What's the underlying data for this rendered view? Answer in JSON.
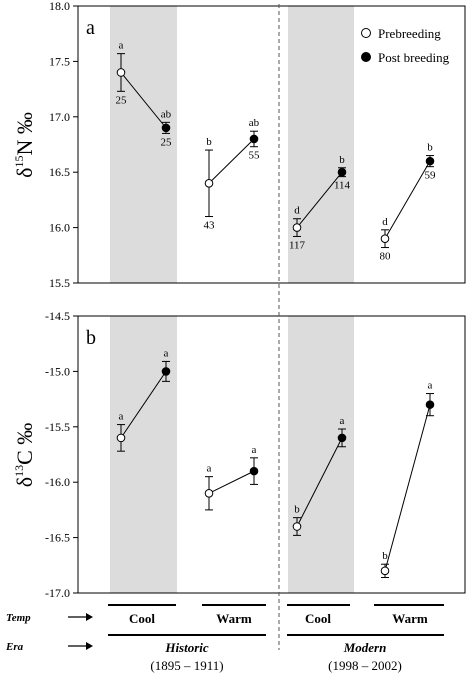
{
  "chart_data": [
    {
      "panel": "a",
      "type": "line",
      "ylabel_main": "δ",
      "ylabel_sup": "15",
      "ylabel_rest": "N ‰",
      "ylim": [
        15.5,
        18.0
      ],
      "yticks": [
        "15.5",
        "16.0",
        "16.5",
        "17.0",
        "17.5",
        "18.0"
      ],
      "legend": {
        "placement": "top-right",
        "entries": [
          "Prebreeding",
          "Post breeding"
        ]
      },
      "groups": [
        {
          "name": "Historic Cool",
          "pre": {
            "value": 17.4,
            "err": 0.17,
            "letter": "a",
            "n": "25"
          },
          "post": {
            "value": 16.9,
            "err": 0.05,
            "letter": "ab",
            "n": "25"
          }
        },
        {
          "name": "Historic Warm",
          "pre": {
            "value": 16.4,
            "err": 0.3,
            "letter": "b",
            "n": "43"
          },
          "post": {
            "value": 16.8,
            "err": 0.07,
            "letter": "ab",
            "n": "55"
          }
        },
        {
          "name": "Modern Cool",
          "pre": {
            "value": 16.0,
            "err": 0.08,
            "letter": "d",
            "n": "117"
          },
          "post": {
            "value": 16.5,
            "err": 0.04,
            "letter": "b",
            "n": "114"
          }
        },
        {
          "name": "Modern Warm",
          "pre": {
            "value": 15.9,
            "err": 0.08,
            "letter": "d",
            "n": "80"
          },
          "post": {
            "value": 16.6,
            "err": 0.05,
            "letter": "b",
            "n": "59"
          }
        }
      ]
    },
    {
      "panel": "b",
      "type": "line",
      "ylabel_main": "δ",
      "ylabel_sup": "13",
      "ylabel_rest": "C ‰",
      "ylim": [
        -17.0,
        -14.5
      ],
      "yticks": [
        "-17.0",
        "-16.5",
        "-16.0",
        "-15.5",
        "-15.0",
        "-14.5"
      ],
      "groups": [
        {
          "name": "Historic Cool",
          "pre": {
            "value": -15.6,
            "err": 0.12,
            "letter": "a"
          },
          "post": {
            "value": -15.0,
            "err": 0.09,
            "letter": "a"
          }
        },
        {
          "name": "Historic Warm",
          "pre": {
            "value": -16.1,
            "err": 0.15,
            "letter": "a"
          },
          "post": {
            "value": -15.9,
            "err": 0.12,
            "letter": "a"
          }
        },
        {
          "name": "Modern Cool",
          "pre": {
            "value": -16.4,
            "err": 0.08,
            "letter": "b"
          },
          "post": {
            "value": -15.6,
            "err": 0.08,
            "letter": "a"
          }
        },
        {
          "name": "Modern Warm",
          "pre": {
            "value": -16.8,
            "err": 0.06,
            "letter": "b"
          },
          "post": {
            "value": -15.3,
            "err": 0.1,
            "letter": "a"
          }
        }
      ]
    }
  ],
  "bottom": {
    "temp_label": "Temp",
    "era_label": "Era",
    "temps": [
      "Cool",
      "Warm",
      "Cool",
      "Warm"
    ],
    "eras": [
      {
        "name": "Historic",
        "years": "(1895 – 1911)"
      },
      {
        "name": "Modern",
        "years": "(1998 – 2002)"
      }
    ]
  },
  "colors": {
    "shade": "#dcdcdc",
    "line": "#000000",
    "prebreeding_fill": "#ffffff",
    "postbreeding_fill": "#000000"
  }
}
